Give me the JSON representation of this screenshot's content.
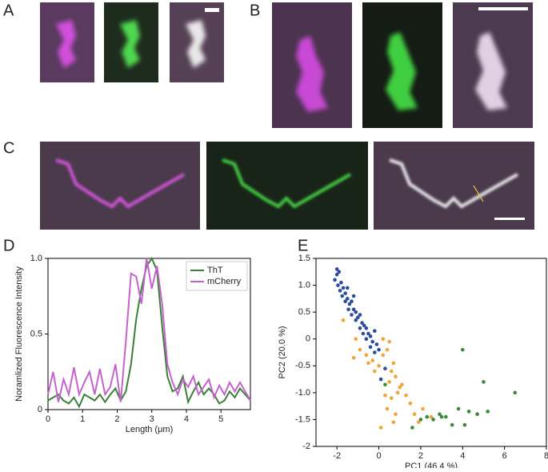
{
  "panel_labels": [
    "A",
    "B",
    "C",
    "D",
    "E"
  ],
  "chart_data": [
    {
      "type": "line",
      "xlabel": "Length (μm)",
      "ylabel": "Noramlized Fluorescence Intensity",
      "x": [
        0,
        0.15,
        0.3,
        0.45,
        0.6,
        0.75,
        0.9,
        1.05,
        1.2,
        1.35,
        1.5,
        1.65,
        1.8,
        1.95,
        2.1,
        2.25,
        2.4,
        2.55,
        2.7,
        2.85,
        3.0,
        3.15,
        3.3,
        3.45,
        3.6,
        3.75,
        3.9,
        4.05,
        4.2,
        4.35,
        4.5,
        4.65,
        4.8,
        4.95,
        5.1,
        5.25,
        5.4,
        5.55,
        5.7,
        5.85
      ],
      "series": [
        {
          "name": "ThT",
          "color": "#3b7f3b",
          "values": [
            0.06,
            0.08,
            0.1,
            0.06,
            0.04,
            0.08,
            0.02,
            0.1,
            0.08,
            0.06,
            0.1,
            0.05,
            0.1,
            0.14,
            0.06,
            0.12,
            0.3,
            0.6,
            0.8,
            0.95,
            1.0,
            0.92,
            0.55,
            0.22,
            0.12,
            0.14,
            0.22,
            0.05,
            0.12,
            0.18,
            0.1,
            0.14,
            0.1,
            0.04,
            0.06,
            0.12,
            0.08,
            0.14,
            0.1,
            0.06
          ]
        },
        {
          "name": "mCherry",
          "color": "#c463cc",
          "values": [
            0.1,
            0.25,
            0.05,
            0.2,
            0.1,
            0.28,
            0.1,
            0.18,
            0.25,
            0.1,
            0.27,
            0.1,
            0.15,
            0.3,
            0.05,
            0.45,
            0.9,
            0.88,
            0.7,
            1.0,
            0.8,
            0.95,
            0.7,
            0.3,
            0.18,
            0.1,
            0.2,
            0.15,
            0.22,
            0.1,
            0.15,
            0.2,
            0.08,
            0.16,
            0.1,
            0.18,
            0.12,
            0.18,
            0.12,
            0.06
          ]
        }
      ],
      "xlim": [
        0,
        5.85
      ],
      "xticks": [
        0,
        1,
        2,
        3,
        4,
        5
      ],
      "ylim": [
        0,
        1
      ],
      "yticks": [
        0,
        0.5,
        {
          "value": 1,
          "label": "1.0"
        }
      ],
      "legend": "upper right"
    },
    {
      "type": "scatter",
      "xlabel": "PC1 (46.4 %)",
      "ylabel": "PC2 (20.0 %)",
      "series": [
        {
          "color": "#2c4b9c",
          "x": [
            -2,
            -1.9,
            -2.1,
            -1.95,
            -1.8,
            -1.7,
            -1.85,
            -1.6,
            -1.75,
            -1.5,
            -1.6,
            -1.4,
            -1.3,
            -1.45,
            -1.2,
            -1.1,
            -1.3,
            -1.0,
            -0.9,
            -1.1,
            -0.8,
            -0.9,
            -0.7,
            -0.6,
            -0.75,
            -0.5,
            -0.4,
            -0.6,
            -0.3,
            -0.2,
            -0.4,
            -0.1,
            -0.2,
            0.0,
            -2.0,
            -1.5,
            -1.2,
            0.3,
            0.1
          ],
          "values": [
            1.3,
            1.25,
            1.1,
            1.0,
            1.05,
            0.95,
            0.9,
            0.85,
            0.8,
            0.75,
            0.7,
            0.65,
            0.7,
            0.55,
            0.55,
            0.5,
            0.45,
            0.4,
            0.45,
            0.35,
            0.3,
            0.2,
            0.25,
            0.2,
            0.1,
            0.1,
            0.05,
            0.0,
            -0.05,
            0.15,
            -0.15,
            -0.1,
            -0.25,
            -0.2,
            1.2,
            0.95,
            0.8,
            -0.55,
            -0.75
          ]
        },
        {
          "color": "#f2a33a",
          "x": [
            -1.7,
            -1.1,
            -0.9,
            -1.2,
            -0.6,
            -0.5,
            -0.3,
            -0.2,
            0.0,
            0.2,
            0.4,
            0.5,
            0.6,
            0.7,
            0.5,
            0.8,
            1.0,
            0.3,
            0.6,
            0.9,
            1.1,
            1.3,
            0.4,
            0.8,
            1.5,
            1.7,
            2.1,
            1.9,
            2.5,
            0.1,
            0.7,
            0.2
          ],
          "values": [
            0.35,
            0.0,
            -0.2,
            -0.35,
            -0.3,
            -0.45,
            -0.4,
            -0.6,
            -0.5,
            -0.3,
            -0.2,
            -0.05,
            -0.6,
            -0.45,
            -0.8,
            -0.7,
            -0.9,
            -1.05,
            -1.1,
            -1.0,
            -0.85,
            -1.05,
            -1.3,
            -1.4,
            -1.2,
            -1.4,
            -1.3,
            -1.55,
            -1.45,
            -1.65,
            -1.55,
            0.0
          ]
        },
        {
          "color": "#3a8a3a",
          "x": [
            2.0,
            2.3,
            2.6,
            2.9,
            3.0,
            3.2,
            3.5,
            3.8,
            4.1,
            4.3,
            4.0,
            4.7,
            5.0,
            5.2,
            6.5,
            1.6,
            0.3
          ],
          "values": [
            -1.5,
            -1.45,
            -1.5,
            -1.4,
            -1.45,
            -1.45,
            -1.6,
            -1.3,
            -1.6,
            -1.35,
            -0.2,
            -1.4,
            -0.8,
            -1.35,
            -1.0,
            -1.65,
            -0.85
          ]
        }
      ],
      "xlim": [
        -3,
        8
      ],
      "xticks": [
        -2,
        0,
        2,
        4,
        6,
        8
      ],
      "ylim": [
        -2,
        1.5
      ],
      "yticks": [
        -2,
        -1.5,
        {
          "value": -1,
          "label": "-1.0"
        },
        -0.5,
        0,
        0.5,
        {
          "value": 1,
          "label": "1.0"
        },
        1.5
      ]
    }
  ]
}
